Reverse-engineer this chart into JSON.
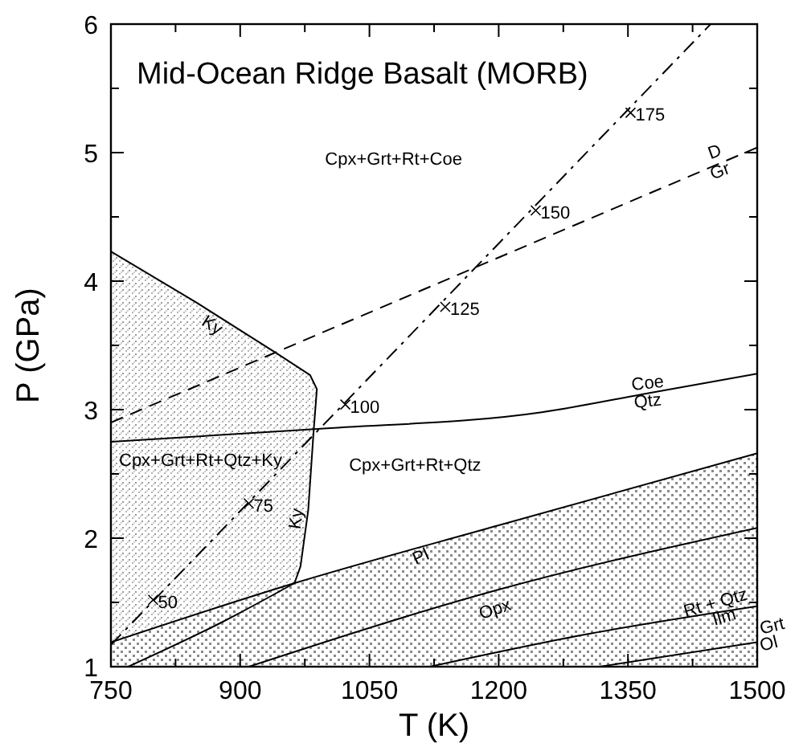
{
  "chart_data": {
    "type": "line",
    "title": "Mid-Ocean Ridge Basalt (MORB)",
    "xlabel": "T (K)",
    "ylabel": "P (GPa)",
    "xlim": [
      750,
      1500
    ],
    "ylim": [
      1,
      6
    ],
    "xticks": [
      750,
      {
        "value": 825,
        "label": null
      },
      900,
      {
        "value": 975,
        "label": null
      },
      1050,
      {
        "value": 1125,
        "label": null
      },
      1200,
      {
        "value": 1275,
        "label": null
      },
      1350,
      {
        "value": 1425,
        "label": null
      },
      1500
    ],
    "yticks": [
      1,
      {
        "value": 1.5,
        "label": null
      },
      2,
      {
        "value": 2.5,
        "label": null
      },
      3,
      {
        "value": 3.5,
        "label": null
      },
      4,
      {
        "value": 4.5,
        "label": null
      },
      5,
      {
        "value": 5.5,
        "label": null
      },
      6
    ],
    "series": [
      {
        "type": "area",
        "color": "#000000",
        "x": [
          750,
          850,
          942,
          981,
          989,
          985,
          979,
          970,
          963
        ],
        "values": [
          4.23,
          3.83,
          3.44,
          3.27,
          3.16,
          2.81,
          2.22,
          1.78,
          1.65
        ]
      },
      {
        "type": "area",
        "color": "#000000",
        "x": [
          750,
          963,
          1200,
          1500
        ],
        "values": [
          1.19,
          1.65,
          2.1,
          2.66
        ]
      },
      {
        "color": "#000000",
        "x": [
          770,
          880,
          963
        ],
        "values": [
          1.0,
          1.35,
          1.65
        ]
      },
      {
        "color": "#000000",
        "x": [
          910,
          1200,
          1500
        ],
        "values": [
          1.0,
          1.6,
          2.08
        ]
      },
      {
        "color": "#000000",
        "x": [
          1120,
          1300,
          1500
        ],
        "values": [
          1.0,
          1.25,
          1.47
        ]
      },
      {
        "color": "#000000",
        "x": [
          1317,
          1500
        ],
        "values": [
          1.0,
          1.19
        ]
      },
      {
        "color": "#000000",
        "x": [
          750,
          990,
          1250,
          1375,
          1500
        ],
        "values": [
          2.75,
          2.85,
          2.98,
          3.13,
          3.28
        ]
      },
      {
        "color": "#000000",
        "line_style": "dashed",
        "x": [
          750,
          1500
        ],
        "values": [
          2.9,
          5.04
        ]
      },
      {
        "color": "#000000",
        "line_style": "dashdot",
        "x": [
          750,
          1446
        ],
        "values": [
          1.17,
          6.0
        ]
      },
      {
        "type": "scatter",
        "color": "#000000",
        "marker": "cross",
        "x": [
          799,
          910,
          1022,
          1138,
          1243,
          1353
        ],
        "values": [
          1.52,
          2.27,
          3.04,
          3.8,
          4.55,
          5.31
        ]
      }
    ],
    "annotations": [
      "Cpx+Grt+Rt+Coe",
      "Cpx+Grt+Rt+Qtz+Ky",
      "Cpx+Grt+Rt+Qtz",
      "Ky",
      "Ky",
      "D",
      "Gr",
      "Coe",
      "Qtz",
      "Pl",
      "Opx",
      "Rt + Qtz",
      "Ilm",
      "Grt",
      "Ol",
      {
        "text": "50",
        "x": 799,
        "y": 1.52
      },
      {
        "text": "75",
        "x": 910,
        "y": 2.27
      },
      {
        "text": "100",
        "x": 1022,
        "y": 3.04
      },
      {
        "text": "125",
        "x": 1138,
        "y": 3.8
      },
      {
        "text": "150",
        "x": 1243,
        "y": 4.55
      },
      {
        "text": "175",
        "x": 1353,
        "y": 5.31
      }
    ]
  }
}
